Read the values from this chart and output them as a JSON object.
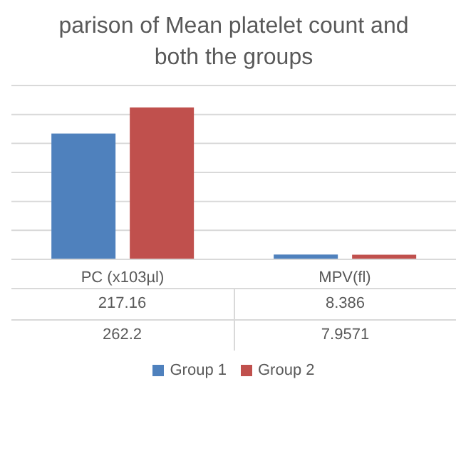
{
  "chart_data": {
    "type": "bar",
    "title": "parison of Mean platelet count and\nboth the groups",
    "categories": [
      "PC (x103µl)",
      "MPV(fl)"
    ],
    "series": [
      {
        "name": "Group 1",
        "color": "#4f81bd",
        "values": [
          217.16,
          8.386
        ]
      },
      {
        "name": "Group 2",
        "color": "#c0504d",
        "values": [
          262.2,
          7.9571
        ]
      }
    ],
    "ylim": [
      0,
      300
    ],
    "yticks": [
      0,
      50,
      100,
      150,
      200,
      250,
      300
    ],
    "grid": "y",
    "tick_labels": "x",
    "data_labels": true,
    "legend": "bottom"
  }
}
